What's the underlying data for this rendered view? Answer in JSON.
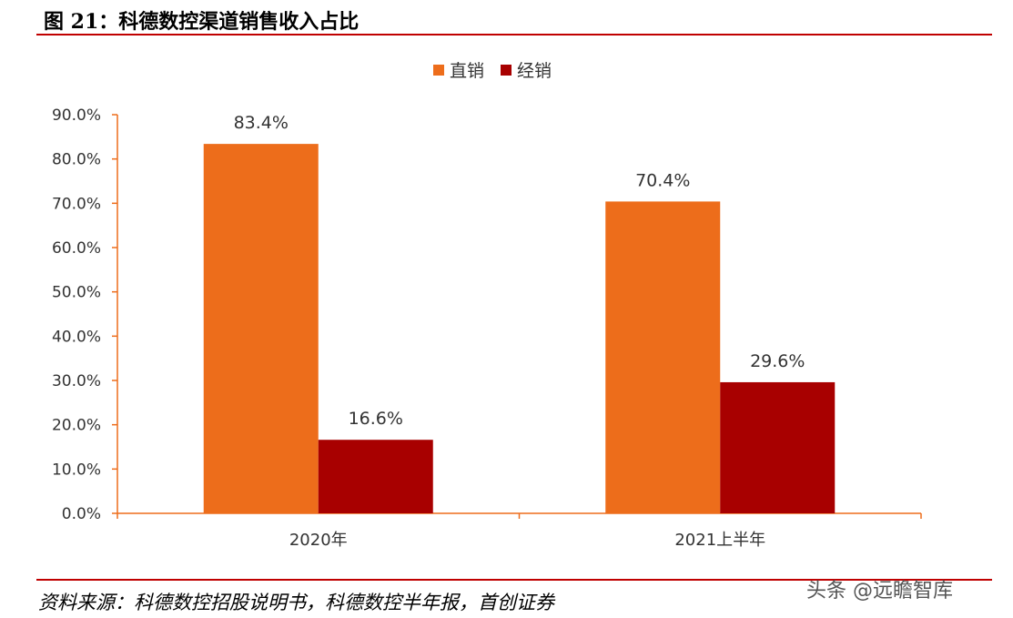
{
  "figure": {
    "title": "图 21：科德数控渠道销售收入占比",
    "source": "资料来源：科德数控招股说明书，科德数控半年报，首创证券",
    "watermark": "头条 @远瞻智库"
  },
  "chart_data": {
    "type": "bar",
    "title": "",
    "xlabel": "",
    "ylabel": "",
    "categories": [
      "2020年",
      "2021上半年"
    ],
    "series": [
      {
        "name": "直销",
        "values": [
          83.4,
          70.4
        ],
        "labels": [
          "83.4%",
          "70.4%"
        ],
        "color": "#ed6d1b"
      },
      {
        "name": "经销",
        "values": [
          16.6,
          29.6
        ],
        "labels": [
          "16.6%",
          "29.6%"
        ],
        "color": "#a80000"
      }
    ],
    "ylim": [
      0,
      90
    ],
    "yticks": [
      0,
      10,
      20,
      30,
      40,
      50,
      60,
      70,
      80,
      90
    ],
    "ytick_labels": [
      "0.0%",
      "10.0%",
      "20.0%",
      "30.0%",
      "40.0%",
      "50.0%",
      "60.0%",
      "70.0%",
      "80.0%",
      "90.0%"
    ],
    "grid": false,
    "legend": "top-center",
    "axis_color": "#ed6d1b"
  }
}
